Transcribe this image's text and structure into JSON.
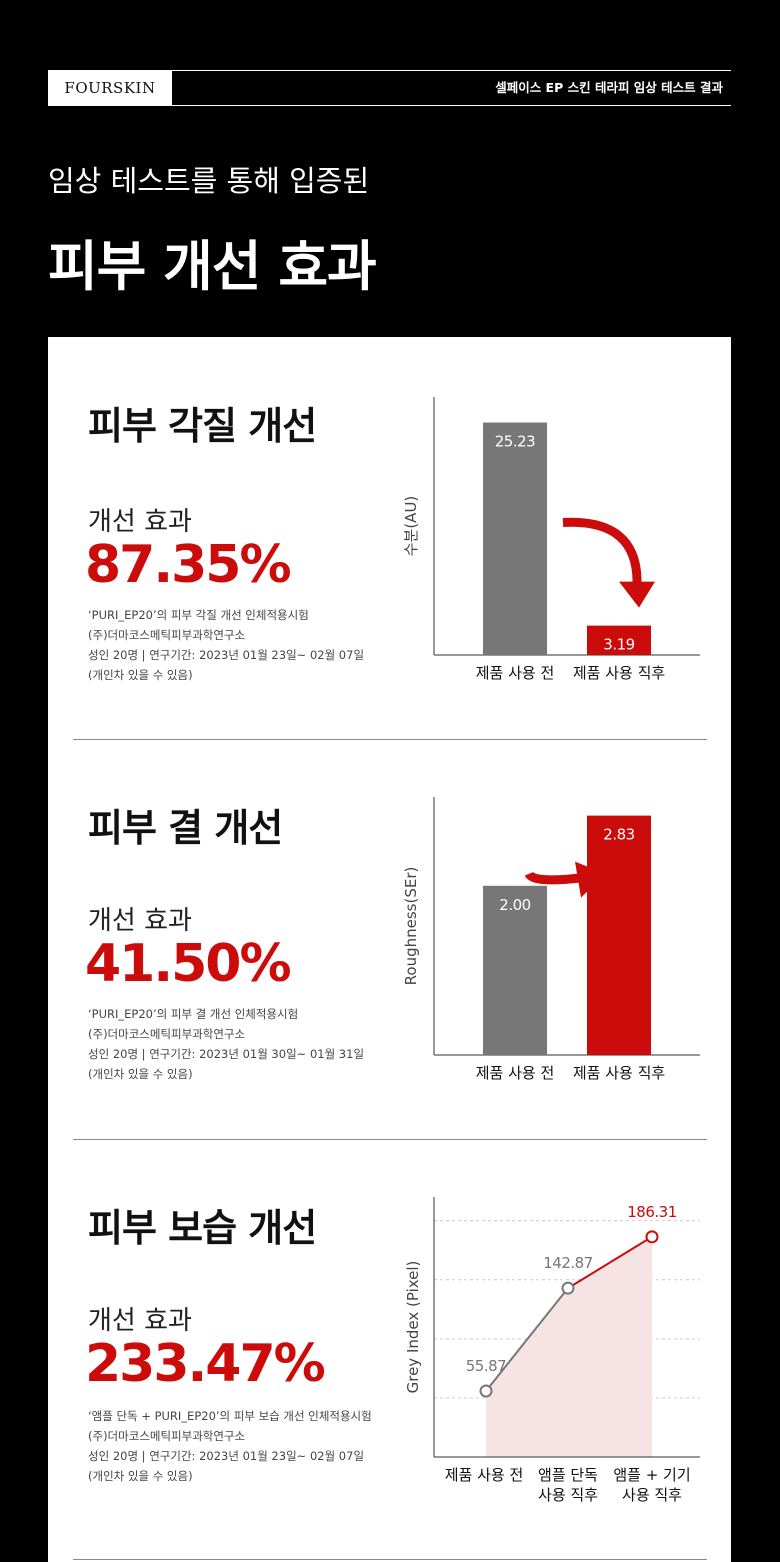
{
  "header": {
    "logo": "FOURSKIN",
    "title": "셀페이스 EP 스킨 테라피 임상 테스트 결과"
  },
  "hero": {
    "subtitle": "임상 테스트를 통해 입증된",
    "title": "피부 개선 효과"
  },
  "sections": [
    {
      "title": "피부 각질 개선",
      "effect_label": "개선 효과",
      "effect_value": "87.35%",
      "notes": [
        "‘PURI_EP20’의 피부 각질 개선 인체적용시험",
        "(주)더마코스메틱피부과학연구소",
        "성인 20명  |  연구기간: 2023년 01월 23일~ 02월 07일",
        "(개인차 있을 수 있음)"
      ]
    },
    {
      "title": "피부 결 개선",
      "effect_label": "개선 효과",
      "effect_value": "41.50%",
      "notes": [
        "‘PURI_EP20’의 피부 결 개선 인체적용시험",
        "(주)더마코스메틱피부과학연구소",
        "성인 20명  |  연구기간: 2023년 01월 30일~ 01월 31일",
        "(개인차 있을 수 있음)"
      ]
    },
    {
      "title": "피부 보습 개선",
      "effect_label": "개선 효과",
      "effect_value": "233.47%",
      "notes": [
        "‘앰플 단독 + PURI_EP20’의 피부 보습 개선 인체적용시험",
        "(주)더마코스메틱피부과학연구소",
        "성인 20명  |  연구기간: 2023년 01월 23일~ 02월 07일",
        "(개인차 있을 수 있음)"
      ]
    }
  ],
  "chart_data": [
    {
      "type": "bar",
      "ylabel": "수분(AU)",
      "categories": [
        "제품 사용 전",
        "제품 사용 직후"
      ],
      "values": [
        25.23,
        3.19
      ],
      "value_labels": [
        "25.23",
        "3.19"
      ],
      "ylim": [
        0,
        28
      ],
      "colors": [
        "#777777",
        "#cc0b0b"
      ],
      "annotation": "arrow-down"
    },
    {
      "type": "bar",
      "ylabel": "Roughness(SEr)",
      "categories": [
        "제품 사용 전",
        "제품 사용 직후"
      ],
      "values": [
        2.0,
        2.83
      ],
      "value_labels": [
        "2.00",
        "2.83"
      ],
      "ylim": [
        0,
        3.05
      ],
      "colors": [
        "#777777",
        "#cc0b0b"
      ],
      "annotation": "arrow-up"
    },
    {
      "type": "line",
      "ylabel": "Grey Index (Pixel)",
      "categories": [
        [
          "제품 사용 전"
        ],
        [
          "앰플 단독",
          "사용 직후"
        ],
        [
          "앰플 + 기기",
          "사용 직후"
        ]
      ],
      "values": [
        55.87,
        142.87,
        186.31
      ],
      "value_labels": [
        "55.87",
        "142.87",
        "186.31"
      ],
      "ylim": [
        0,
        220
      ],
      "grid": true,
      "colors": [
        "#777777",
        "#cc0b0b"
      ]
    }
  ]
}
